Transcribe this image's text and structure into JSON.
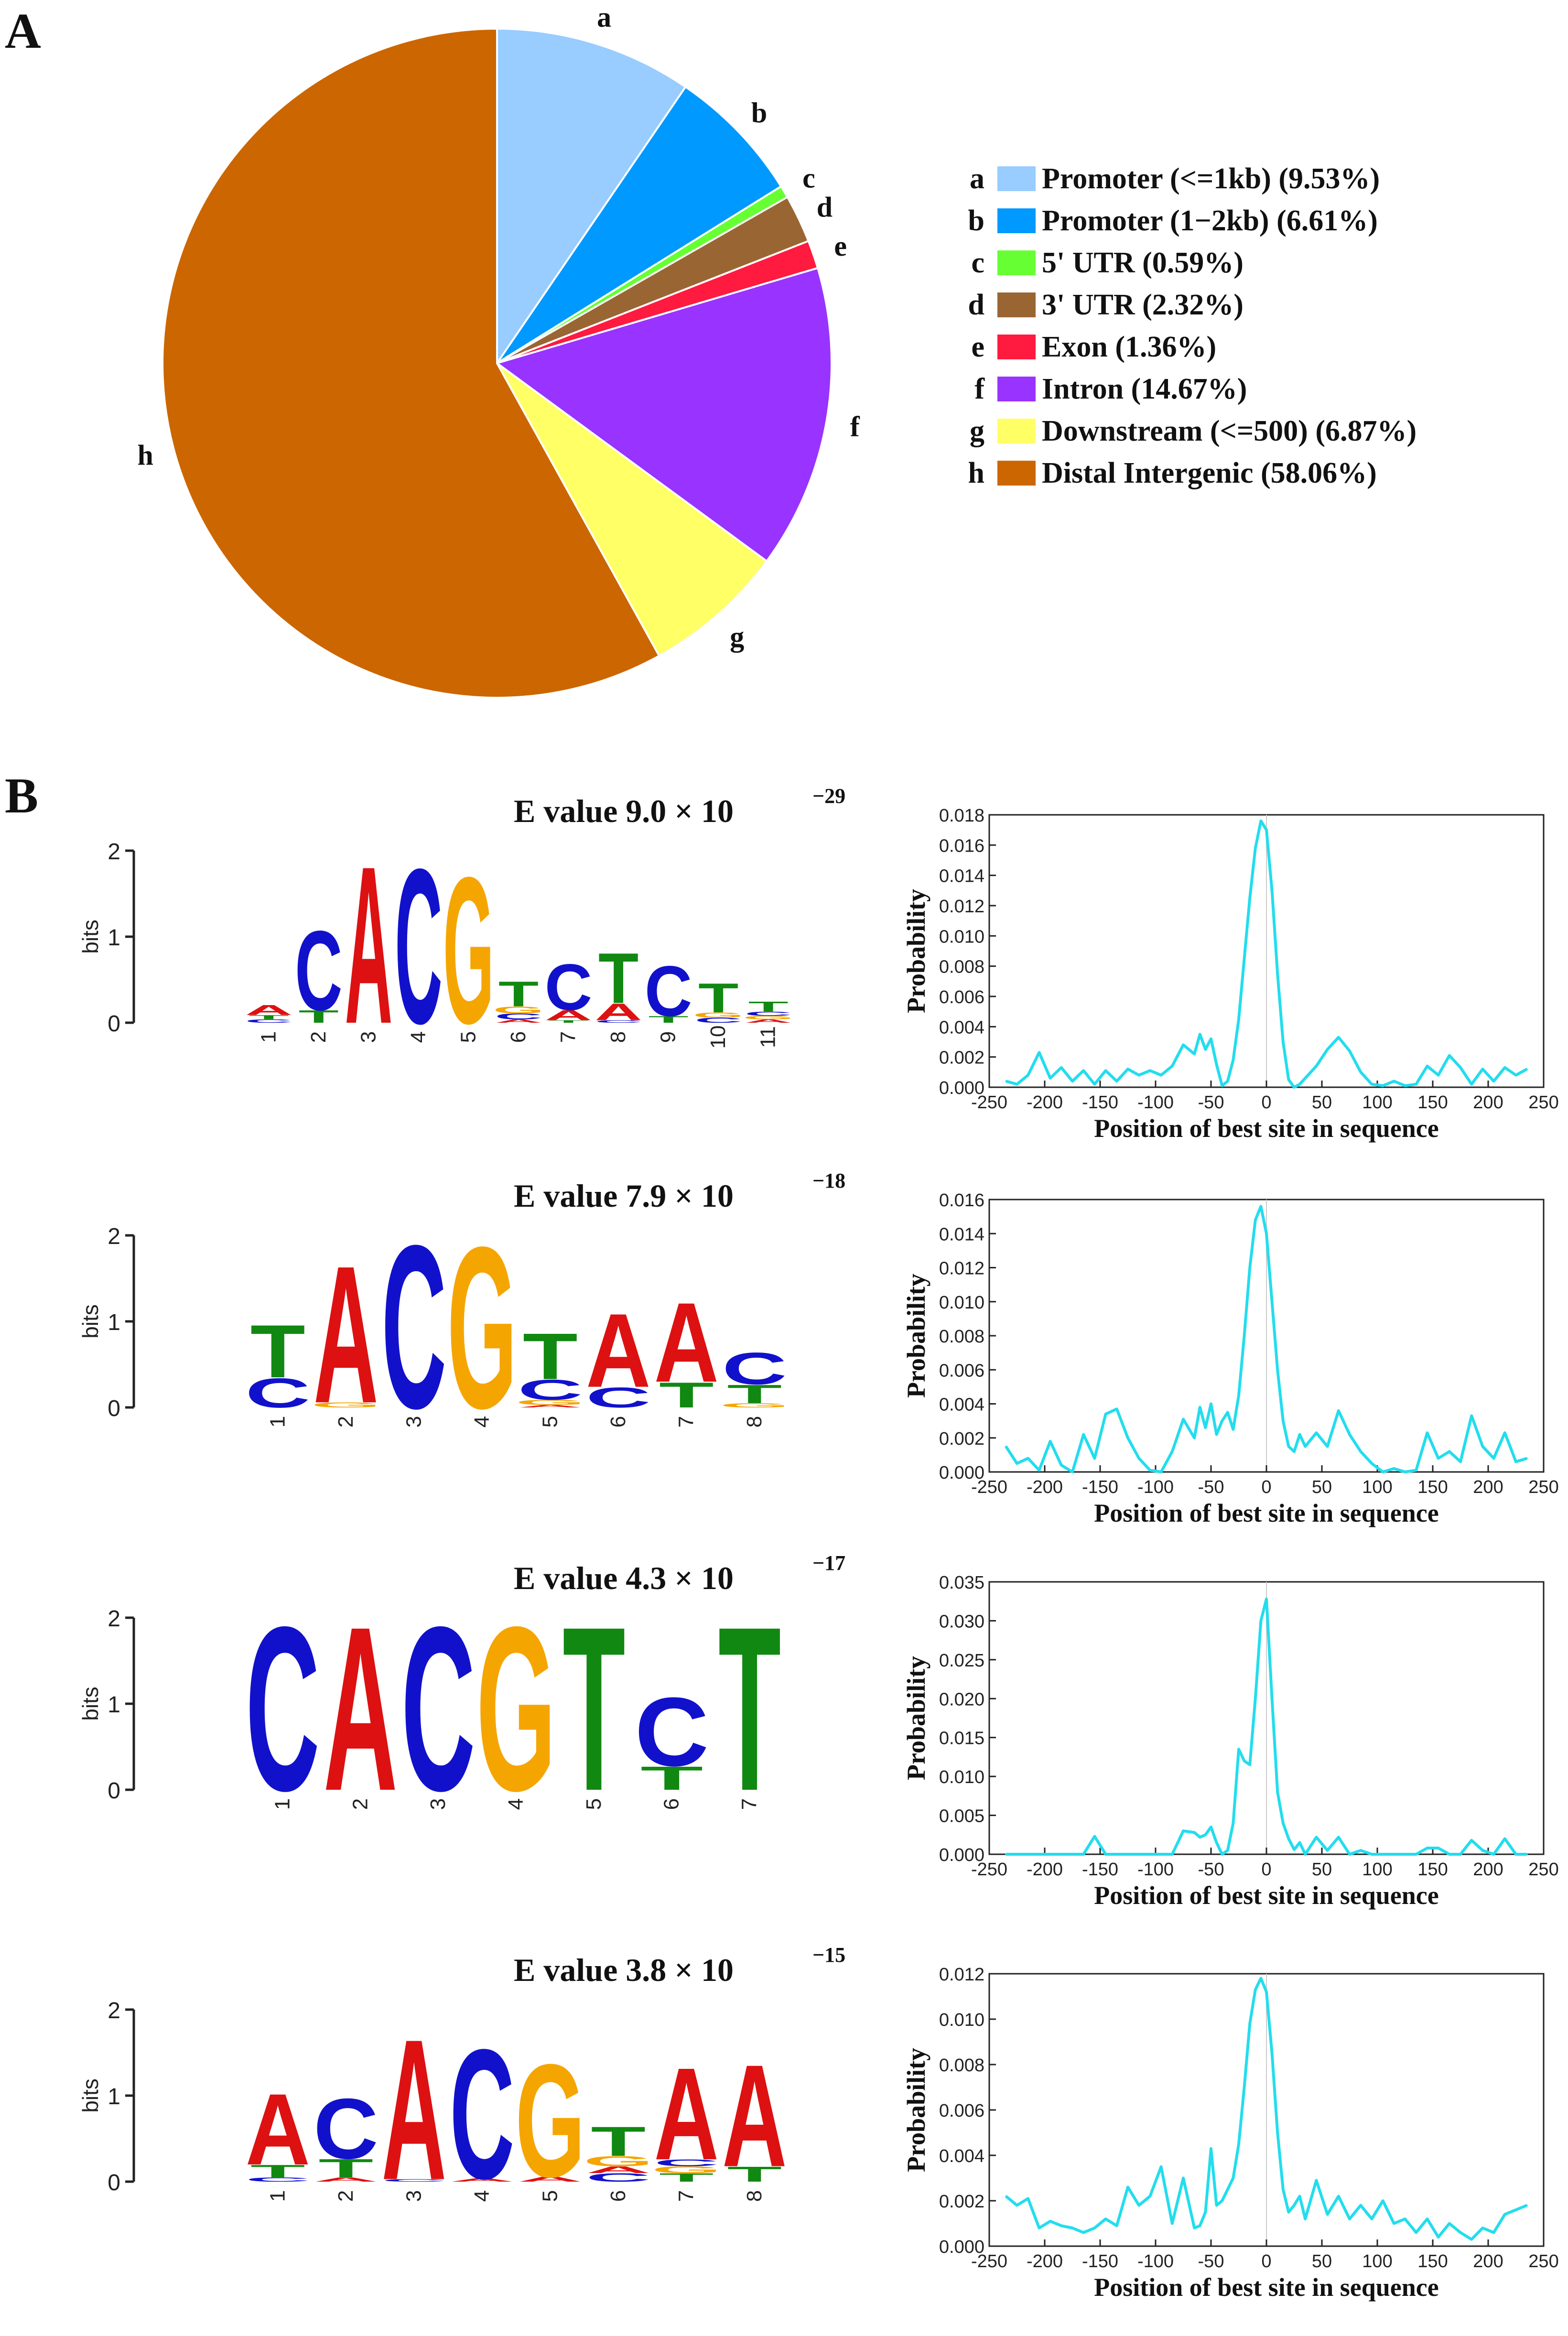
{
  "panels": {
    "a": "A",
    "b": "B"
  },
  "pie": {
    "type": "pie",
    "slices": [
      {
        "letter": "a",
        "label": "Promoter (<=1kb) (9.53%)",
        "value": 9.53,
        "color": "#99CCFF"
      },
      {
        "letter": "b",
        "label": "Promoter (1−2kb) (6.61%)",
        "value": 6.61,
        "color": "#0099FF"
      },
      {
        "letter": "c",
        "label": "5' UTR (0.59%)",
        "value": 0.59,
        "color": "#66FF33"
      },
      {
        "letter": "d",
        "label": "3' UTR (2.32%)",
        "value": 2.32,
        "color": "#996633"
      },
      {
        "letter": "e",
        "label": "Exon (1.36%)",
        "value": 1.36,
        "color": "#FF1A40"
      },
      {
        "letter": "f",
        "label": "Intron (14.67%)",
        "value": 14.67,
        "color": "#9933FF"
      },
      {
        "letter": "g",
        "label": "Downstream (<=500) (6.87%)",
        "value": 6.87,
        "color": "#FFFF66"
      },
      {
        "letter": "h",
        "label": "Distal Intergenic (58.06%)",
        "value": 58.06,
        "color": "#CC6600"
      }
    ]
  },
  "base_colors": {
    "A": "#DD1111",
    "C": "#1111CC",
    "G": "#F5A500",
    "T": "#118811"
  },
  "logo_axis": {
    "ylabel": "bits",
    "ticks": [
      "0",
      "1",
      "2"
    ]
  },
  "dist_axis": {
    "xlabel": "Position of best site in sequence",
    "ylabel": "Probability",
    "xticks": [
      -250,
      -200,
      -150,
      -100,
      -50,
      0,
      50,
      100,
      150,
      200,
      250
    ],
    "line_color": "#22DDEE"
  },
  "chart_data": [
    {
      "type": "pie",
      "title": "",
      "categories": [
        "Promoter (<=1kb)",
        "Promoter (1−2kb)",
        "5' UTR",
        "3' UTR",
        "Exon",
        "Intron",
        "Downstream (<=500)",
        "Distal Intergenic"
      ],
      "values": [
        9.53,
        6.61,
        0.59,
        2.32,
        1.36,
        14.67,
        6.87,
        58.06
      ]
    },
    {
      "type": "line",
      "evalue_prefix": "E value  9.0 × 10",
      "evalue_exp": "−29",
      "ylim": [
        0,
        0.018
      ],
      "yticks": [
        "0.000",
        "0.002",
        "0.004",
        "0.006",
        "0.008",
        "0.010",
        "0.012",
        "0.014",
        "0.016",
        "0.018"
      ],
      "xlim": [
        -250,
        250
      ],
      "x": [
        -235,
        -225,
        -215,
        -205,
        -195,
        -185,
        -175,
        -165,
        -155,
        -145,
        -135,
        -125,
        -115,
        -105,
        -95,
        -85,
        -75,
        -65,
        -60,
        -55,
        -50,
        -45,
        -40,
        -35,
        -30,
        -25,
        -20,
        -15,
        -10,
        -5,
        0,
        5,
        10,
        15,
        20,
        25,
        30,
        35,
        45,
        55,
        65,
        75,
        85,
        95,
        105,
        115,
        125,
        135,
        145,
        155,
        165,
        175,
        185,
        195,
        205,
        215,
        225,
        235
      ],
      "y": [
        0.0004,
        0.0002,
        0.0008,
        0.0023,
        0.0006,
        0.0013,
        0.0004,
        0.0011,
        0.0002,
        0.0011,
        0.0004,
        0.0012,
        0.0008,
        0.0011,
        0.0008,
        0.0014,
        0.0028,
        0.0022,
        0.0035,
        0.0025,
        0.0032,
        0.0015,
        0.0001,
        0.0004,
        0.0018,
        0.0045,
        0.0085,
        0.0125,
        0.0158,
        0.0176,
        0.017,
        0.013,
        0.0075,
        0.003,
        0.0005,
        0.0,
        0.0002,
        0.0006,
        0.0014,
        0.0025,
        0.0033,
        0.0024,
        0.001,
        0.0002,
        0.0001,
        0.0004,
        0.0001,
        0.0002,
        0.0014,
        0.0008,
        0.0021,
        0.0013,
        0.0002,
        0.0012,
        0.0004,
        0.0013,
        0.0008,
        0.0012
      ]
    },
    {
      "type": "line",
      "evalue_prefix": "E value  7.9 × 10",
      "evalue_exp": "−18",
      "ylim": [
        0,
        0.016
      ],
      "yticks": [
        "0.000",
        "0.002",
        "0.004",
        "0.006",
        "0.008",
        "0.010",
        "0.012",
        "0.014",
        "0.016"
      ],
      "xlim": [
        -250,
        250
      ],
      "x": [
        -235,
        -225,
        -215,
        -205,
        -195,
        -185,
        -175,
        -165,
        -155,
        -145,
        -135,
        -125,
        -115,
        -105,
        -95,
        -85,
        -75,
        -65,
        -60,
        -55,
        -50,
        -45,
        -40,
        -35,
        -30,
        -25,
        -20,
        -15,
        -10,
        -5,
        0,
        5,
        10,
        15,
        20,
        25,
        30,
        35,
        45,
        55,
        65,
        75,
        85,
        95,
        105,
        115,
        125,
        135,
        145,
        155,
        165,
        175,
        185,
        195,
        205,
        215,
        225,
        235
      ],
      "y": [
        0.0015,
        0.0005,
        0.0008,
        0.0001,
        0.0018,
        0.0004,
        0.0,
        0.0022,
        0.0008,
        0.0034,
        0.0037,
        0.002,
        0.0008,
        0.0001,
        0.0,
        0.0012,
        0.0031,
        0.002,
        0.0038,
        0.0026,
        0.004,
        0.0022,
        0.003,
        0.0035,
        0.0025,
        0.0045,
        0.008,
        0.012,
        0.0148,
        0.0156,
        0.014,
        0.01,
        0.006,
        0.003,
        0.0015,
        0.0012,
        0.0022,
        0.0015,
        0.0023,
        0.0015,
        0.0036,
        0.0022,
        0.0012,
        0.0005,
        0.0,
        0.0002,
        0.0,
        0.0001,
        0.0023,
        0.0008,
        0.0012,
        0.0006,
        0.0033,
        0.0015,
        0.0008,
        0.0023,
        0.0006,
        0.0008
      ]
    },
    {
      "type": "line",
      "evalue_prefix": "E value  4.3 × 10",
      "evalue_exp": "−17",
      "ylim": [
        0,
        0.035
      ],
      "yticks": [
        "0.000",
        "0.005",
        "0.010",
        "0.015",
        "0.020",
        "0.025",
        "0.030",
        "0.035"
      ],
      "xlim": [
        -250,
        250
      ],
      "x": [
        -235,
        -225,
        -215,
        -205,
        -195,
        -185,
        -175,
        -165,
        -155,
        -145,
        -135,
        -125,
        -115,
        -105,
        -95,
        -85,
        -75,
        -65,
        -60,
        -55,
        -50,
        -45,
        -40,
        -35,
        -30,
        -25,
        -20,
        -15,
        -10,
        -5,
        0,
        5,
        10,
        15,
        20,
        25,
        30,
        35,
        45,
        55,
        65,
        75,
        85,
        95,
        105,
        115,
        125,
        135,
        145,
        155,
        165,
        175,
        185,
        195,
        205,
        215,
        225,
        235
      ],
      "y": [
        0.0,
        0.0,
        0.0,
        0.0,
        0.0,
        0.0,
        0.0,
        0.0,
        0.0023,
        0.0,
        0.0,
        0.0,
        0.0,
        0.0,
        0.0,
        0.0,
        0.003,
        0.0028,
        0.0022,
        0.0025,
        0.0035,
        0.0015,
        0.0,
        0.0005,
        0.004,
        0.0135,
        0.012,
        0.0115,
        0.02,
        0.03,
        0.0328,
        0.02,
        0.008,
        0.004,
        0.002,
        0.0006,
        0.0015,
        0.0,
        0.0022,
        0.0005,
        0.0022,
        0.0,
        0.0005,
        0.0,
        0.0,
        0.0,
        0.0,
        0.0,
        0.0008,
        0.0008,
        0.0,
        0.0,
        0.0018,
        0.0005,
        0.0,
        0.002,
        0.0,
        0.0
      ]
    },
    {
      "type": "line",
      "evalue_prefix": "E value  3.8 × 10",
      "evalue_exp": "−15",
      "ylim": [
        0,
        0.012
      ],
      "yticks": [
        "0.000",
        "0.002",
        "0.004",
        "0.006",
        "0.008",
        "0.010",
        "0.012"
      ],
      "xlim": [
        -250,
        250
      ],
      "x": [
        -235,
        -225,
        -215,
        -205,
        -195,
        -185,
        -175,
        -165,
        -155,
        -145,
        -135,
        -125,
        -115,
        -105,
        -95,
        -85,
        -75,
        -65,
        -60,
        -55,
        -50,
        -45,
        -40,
        -35,
        -30,
        -25,
        -20,
        -15,
        -10,
        -5,
        0,
        5,
        10,
        15,
        20,
        25,
        30,
        35,
        45,
        55,
        65,
        75,
        85,
        95,
        105,
        115,
        125,
        135,
        145,
        155,
        165,
        175,
        185,
        195,
        205,
        215,
        225,
        235
      ],
      "y": [
        0.0022,
        0.0018,
        0.0021,
        0.0008,
        0.0011,
        0.0009,
        0.0008,
        0.0006,
        0.0008,
        0.0012,
        0.0009,
        0.0026,
        0.0018,
        0.0022,
        0.0035,
        0.001,
        0.003,
        0.0008,
        0.0009,
        0.0015,
        0.0043,
        0.0018,
        0.002,
        0.0025,
        0.003,
        0.0045,
        0.007,
        0.0098,
        0.0113,
        0.0118,
        0.0112,
        0.0085,
        0.005,
        0.0025,
        0.0015,
        0.0018,
        0.0022,
        0.0012,
        0.0029,
        0.0014,
        0.0022,
        0.0012,
        0.0018,
        0.0012,
        0.002,
        0.001,
        0.0012,
        0.0006,
        0.0012,
        0.0004,
        0.001,
        0.0006,
        0.0003,
        0.0008,
        0.0006,
        0.0014,
        0.0016,
        0.0018
      ]
    }
  ],
  "logos": [
    {
      "positions": [
        {
          "label": "1",
          "stack": [
            {
              "b": "C",
              "h": 0.04
            },
            {
              "b": "T",
              "h": 0.05
            },
            {
              "b": "A",
              "h": 0.12
            }
          ]
        },
        {
          "label": "2",
          "stack": [
            {
              "b": "T",
              "h": 0.15
            },
            {
              "b": "C",
              "h": 0.95
            }
          ]
        },
        {
          "label": "3",
          "stack": [
            {
              "b": "A",
              "h": 1.88
            }
          ]
        },
        {
          "label": "4",
          "stack": [
            {
              "b": "C",
              "h": 1.85
            }
          ]
        },
        {
          "label": "5",
          "stack": [
            {
              "b": "G",
              "h": 1.75
            }
          ]
        },
        {
          "label": "6",
          "stack": [
            {
              "b": "A",
              "h": 0.04
            },
            {
              "b": "C",
              "h": 0.07
            },
            {
              "b": "G",
              "h": 0.08
            },
            {
              "b": "T",
              "h": 0.3
            }
          ]
        },
        {
          "label": "7",
          "stack": [
            {
              "b": "T",
              "h": 0.03
            },
            {
              "b": "A",
              "h": 0.12
            },
            {
              "b": "C",
              "h": 0.55
            }
          ]
        },
        {
          "label": "8",
          "stack": [
            {
              "b": "C",
              "h": 0.03
            },
            {
              "b": "A",
              "h": 0.2
            },
            {
              "b": "T",
              "h": 0.6
            }
          ]
        },
        {
          "label": "9",
          "stack": [
            {
              "b": "T",
              "h": 0.08
            },
            {
              "b": "C",
              "h": 0.6
            }
          ]
        },
        {
          "label": "10",
          "stack": [
            {
              "b": "C",
              "h": 0.06
            },
            {
              "b": "G",
              "h": 0.06
            },
            {
              "b": "T",
              "h": 0.35
            }
          ]
        },
        {
          "label": "11",
          "stack": [
            {
              "b": "A",
              "h": 0.04
            },
            {
              "b": "G",
              "h": 0.04
            },
            {
              "b": "C",
              "h": 0.05
            },
            {
              "b": "T",
              "h": 0.12
            }
          ]
        }
      ]
    },
    {
      "positions": [
        {
          "label": "1",
          "stack": [
            {
              "b": "C",
              "h": 0.35
            },
            {
              "b": "T",
              "h": 0.63
            }
          ]
        },
        {
          "label": "2",
          "stack": [
            {
              "b": "G",
              "h": 0.06
            },
            {
              "b": "A",
              "h": 1.64
            }
          ]
        },
        {
          "label": "3",
          "stack": [
            {
              "b": "C",
              "h": 1.95
            }
          ]
        },
        {
          "label": "4",
          "stack": [
            {
              "b": "G",
              "h": 1.93
            }
          ]
        },
        {
          "label": "5",
          "stack": [
            {
              "b": "A",
              "h": 0.03
            },
            {
              "b": "G",
              "h": 0.06
            },
            {
              "b": "C",
              "h": 0.24
            },
            {
              "b": "T",
              "h": 0.55
            }
          ]
        },
        {
          "label": "6",
          "stack": [
            {
              "b": "C",
              "h": 0.24
            },
            {
              "b": "A",
              "h": 0.88
            }
          ]
        },
        {
          "label": "7",
          "stack": [
            {
              "b": "T",
              "h": 0.3
            },
            {
              "b": "A",
              "h": 0.95
            }
          ]
        },
        {
          "label": "8",
          "stack": [
            {
              "b": "G",
              "h": 0.05
            },
            {
              "b": "T",
              "h": 0.22
            },
            {
              "b": "C",
              "h": 0.38
            }
          ]
        }
      ]
    },
    {
      "positions": [
        {
          "label": "1",
          "stack": [
            {
              "b": "C",
              "h": 1.96
            }
          ]
        },
        {
          "label": "2",
          "stack": [
            {
              "b": "A",
              "h": 1.96
            }
          ]
        },
        {
          "label": "3",
          "stack": [
            {
              "b": "C",
              "h": 1.96
            }
          ]
        },
        {
          "label": "4",
          "stack": [
            {
              "b": "G",
              "h": 1.96
            }
          ]
        },
        {
          "label": "5",
          "stack": [
            {
              "b": "T",
              "h": 1.96
            }
          ]
        },
        {
          "label": "6",
          "stack": [
            {
              "b": "T",
              "h": 0.28
            },
            {
              "b": "C",
              "h": 0.82
            }
          ]
        },
        {
          "label": "7",
          "stack": [
            {
              "b": "T",
              "h": 1.96
            }
          ]
        }
      ]
    },
    {
      "positions": [
        {
          "label": "1",
          "stack": [
            {
              "b": "C",
              "h": 0.05
            },
            {
              "b": "T",
              "h": 0.15
            },
            {
              "b": "A",
              "h": 0.85
            }
          ]
        },
        {
          "label": "2",
          "stack": [
            {
              "b": "A",
              "h": 0.05
            },
            {
              "b": "T",
              "h": 0.22
            },
            {
              "b": "C",
              "h": 0.72
            }
          ]
        },
        {
          "label": "3",
          "stack": [
            {
              "b": "C",
              "h": 0.03
            },
            {
              "b": "A",
              "h": 1.68
            }
          ]
        },
        {
          "label": "4",
          "stack": [
            {
              "b": "A",
              "h": 0.04
            },
            {
              "b": "C",
              "h": 1.55
            }
          ]
        },
        {
          "label": "5",
          "stack": [
            {
              "b": "A",
              "h": 0.06
            },
            {
              "b": "G",
              "h": 1.35
            }
          ]
        },
        {
          "label": "6",
          "stack": [
            {
              "b": "C",
              "h": 0.1
            },
            {
              "b": "A",
              "h": 0.08
            },
            {
              "b": "G",
              "h": 0.12
            },
            {
              "b": "T",
              "h": 0.35
            }
          ]
        },
        {
          "label": "7",
          "stack": [
            {
              "b": "T",
              "h": 0.1
            },
            {
              "b": "G",
              "h": 0.08
            },
            {
              "b": "C",
              "h": 0.08
            },
            {
              "b": "A",
              "h": 1.1
            }
          ]
        },
        {
          "label": "8",
          "stack": [
            {
              "b": "T",
              "h": 0.18
            },
            {
              "b": "A",
              "h": 1.22
            }
          ]
        }
      ]
    }
  ]
}
